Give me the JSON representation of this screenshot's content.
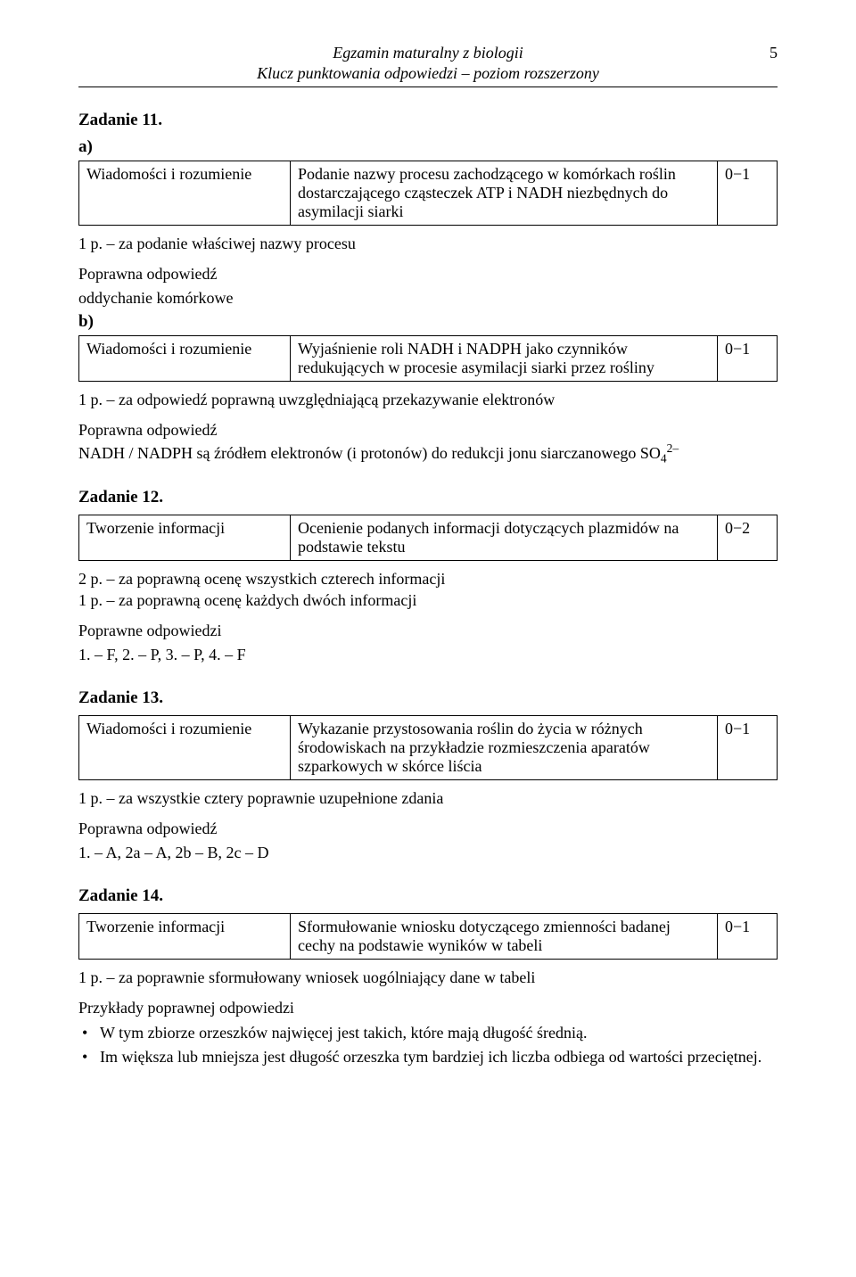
{
  "header": {
    "line1": "Egzamin maturalny z biologii",
    "line2": "Klucz punktowania odpowiedzi – poziom rozszerzony",
    "page_no": "5"
  },
  "task11": {
    "title": "Zadanie 11.",
    "a_label": "a)",
    "a_table": {
      "category": "Wiadomości i rozumienie",
      "desc": "Podanie nazwy procesu zachodzącego w komórkach roślin dostarczającego cząsteczek ATP i NADH niezbędnych do asymilacji siarki",
      "points": "0−1"
    },
    "a_rule": "1 p. – za podanie właściwej nazwy procesu",
    "a_answer_label": "Poprawna odpowiedź",
    "a_answer": "oddychanie komórkowe",
    "b_label": "b)",
    "b_table": {
      "category": "Wiadomości i rozumienie",
      "desc": "Wyjaśnienie roli NADH i NADPH jako czynników redukujących w procesie asymilacji siarki przez rośliny",
      "points": "0−1"
    },
    "b_rule": "1 p. – za odpowiedź poprawną uwzględniającą przekazywanie elektronów",
    "b_answer_label": "Poprawna odpowiedź",
    "b_answer_pre": "NADH / NADPH są źródłem elektronów (i protonów) do redukcji jonu siarczanowego SO",
    "b_answer_sub": "4",
    "b_answer_sup": "2–"
  },
  "task12": {
    "title": "Zadanie 12.",
    "table": {
      "category": "Tworzenie informacji",
      "desc": "Ocenienie podanych informacji dotyczących plazmidów na podstawie tekstu",
      "points": "0−2"
    },
    "rule1": "2 p. – za poprawną ocenę wszystkich czterech informacji",
    "rule2": "1 p. – za poprawną ocenę każdych dwóch informacji",
    "answer_label": "Poprawne odpowiedzi",
    "answer": "1. – F,   2. – P,   3. – P,   4. – F"
  },
  "task13": {
    "title": "Zadanie 13.",
    "table": {
      "category": "Wiadomości i rozumienie",
      "desc": "Wykazanie przystosowania roślin do życia w różnych środowiskach na przykładzie rozmieszczenia aparatów szparkowych w skórce liścia",
      "points": "0−1"
    },
    "rule": "1 p. – za wszystkie cztery poprawnie uzupełnione zdania",
    "answer_label": "Poprawna odpowiedź",
    "answer": "1. – A,    2a – A,    2b – B,    2c – D"
  },
  "task14": {
    "title": "Zadanie 14.",
    "table": {
      "category": "Tworzenie informacji",
      "desc": "Sformułowanie wniosku dotyczącego zmienności badanej cechy na podstawie wyników w tabeli",
      "points": "0−1"
    },
    "rule": "1 p. – za poprawnie sformułowany wniosek uogólniający dane w tabeli",
    "examples_label": "Przykłady poprawnej odpowiedzi",
    "bullet1": "W tym zbiorze orzeszków najwięcej jest takich, które mają długość średnią.",
    "bullet2": "Im większa lub mniejsza jest długość orzeszka tym bardziej ich liczba odbiega od wartości przeciętnej."
  }
}
